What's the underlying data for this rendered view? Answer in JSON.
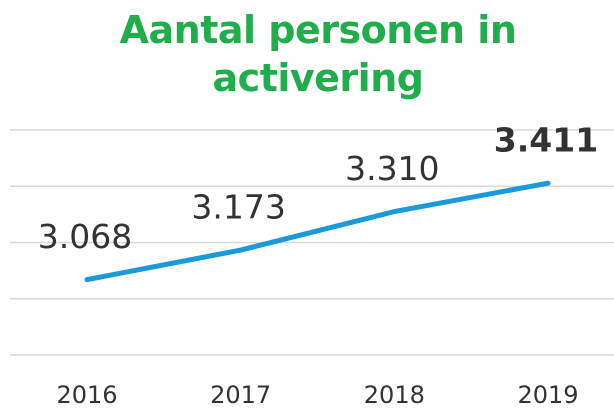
{
  "chart_data": {
    "type": "line",
    "title": "Aantal personen in activering",
    "categories": [
      "2016",
      "2017",
      "2018",
      "2019"
    ],
    "series": [
      {
        "color": "#1a9ad9",
        "values": [
          3068,
          3173,
          3310,
          3411
        ],
        "value_labels": [
          "3.068",
          "3.173",
          "3.310",
          "3.411"
        ]
      }
    ],
    "ylim": [
      2800,
      3600
    ],
    "yticks": [
      2800,
      3000,
      3200,
      3400,
      3600
    ],
    "grid": true
  }
}
